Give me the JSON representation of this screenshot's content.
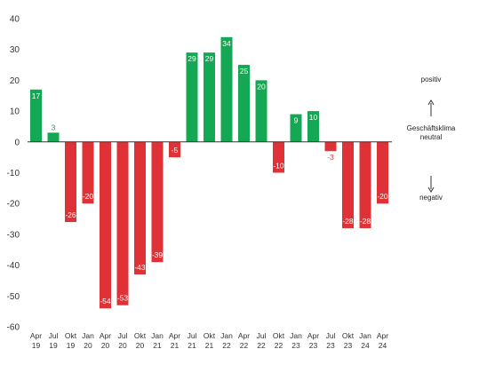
{
  "chart_data": {
    "type": "bar",
    "title": "",
    "xlabel": "",
    "ylabel": "",
    "ylim": [
      -60,
      40
    ],
    "yticks": [
      40,
      30,
      20,
      10,
      0,
      -10,
      -20,
      -30,
      -40,
      -50,
      -60
    ],
    "grid": false,
    "categories": [
      [
        "Apr",
        "19"
      ],
      [
        "Jul",
        "19"
      ],
      [
        "Okt",
        "19"
      ],
      [
        "Jan",
        "20"
      ],
      [
        "Apr",
        "20"
      ],
      [
        "Jul",
        "20"
      ],
      [
        "Okt",
        "20"
      ],
      [
        "Jan",
        "21"
      ],
      [
        "Apr",
        "21"
      ],
      [
        "Jul",
        "21"
      ],
      [
        "Okt",
        "21"
      ],
      [
        "Jan",
        "22"
      ],
      [
        "Apr",
        "22"
      ],
      [
        "Jul",
        "22"
      ],
      [
        "Okt",
        "22"
      ],
      [
        "Jan",
        "23"
      ],
      [
        "Apr",
        "23"
      ],
      [
        "Jul",
        "23"
      ],
      [
        "Okt",
        "23"
      ],
      [
        "Jan",
        "24"
      ],
      [
        "Apr",
        "24"
      ]
    ],
    "values": [
      17,
      3,
      -26,
      -20,
      -54,
      -53,
      -43,
      -39,
      -5,
      29,
      29,
      34,
      25,
      20,
      -10,
      9,
      10,
      -3,
      -28,
      -28,
      -20
    ],
    "labels": [
      "17",
      "3",
      "-26",
      "-20",
      "-54",
      "-53",
      "-43",
      "-39",
      "-5",
      "29",
      "29",
      "34",
      "25",
      "20",
      "-10",
      "9",
      "10",
      "-3",
      "-28",
      "-28",
      "-20"
    ],
    "colors": {
      "positive": "#14a854",
      "negative": "#e03236",
      "axis": "#333333"
    },
    "legend": {
      "position": "right",
      "positive_label": "positiv",
      "neutral_label_line1": "Geschäftsklima",
      "neutral_label_line2": "neutral",
      "negative_label": "negativ"
    }
  }
}
